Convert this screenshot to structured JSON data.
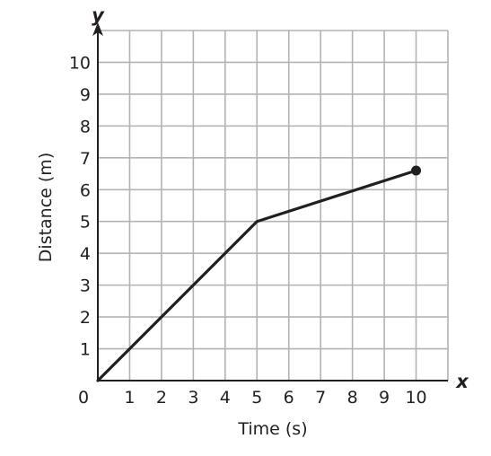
{
  "chart_data": {
    "type": "line",
    "xlabel": "Time (s)",
    "ylabel": "Distance (m)",
    "x_axis_letter": "x",
    "y_axis_letter": "y",
    "origin_label": "0",
    "xlim": [
      0,
      11
    ],
    "ylim": [
      0,
      11
    ],
    "x_ticks": [
      "1",
      "2",
      "3",
      "4",
      "5",
      "6",
      "7",
      "8",
      "9",
      "10"
    ],
    "y_ticks": [
      "1",
      "2",
      "3",
      "4",
      "5",
      "6",
      "7",
      "8",
      "9",
      "10"
    ],
    "grid": true,
    "series": [
      {
        "x": [
          0,
          5,
          10
        ],
        "y": [
          0,
          5,
          6.6
        ],
        "endpoint_marker": true
      }
    ],
    "colors": {
      "grid": "#b3b3b3",
      "axis": "#231f20",
      "line": "#231f20"
    }
  }
}
